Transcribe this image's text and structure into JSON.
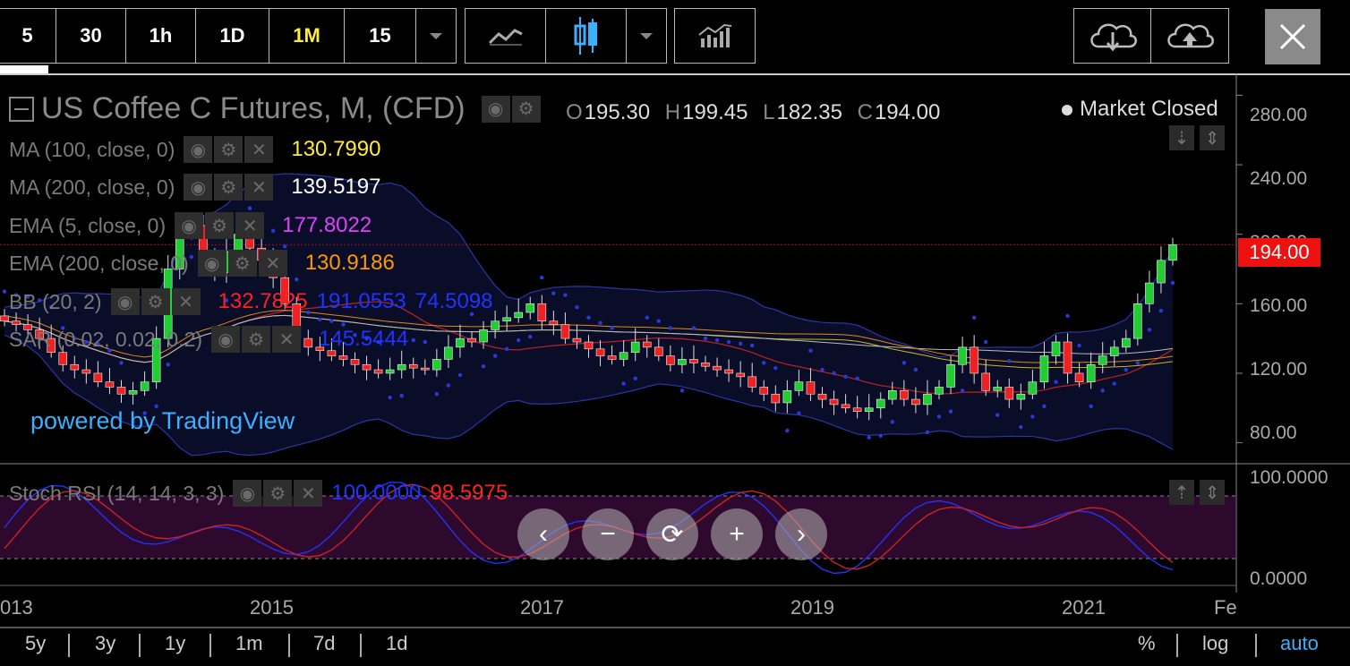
{
  "toolbar": {
    "intervals": [
      "5",
      "30",
      "1h",
      "1D",
      "1M",
      "15"
    ],
    "active_interval": "1M"
  },
  "legend": {
    "title": "US Coffee C Futures, M, (CFD)",
    "ohlc": {
      "o_label": "O",
      "o": "195.30",
      "h_label": "H",
      "h": "199.45",
      "l_label": "L",
      "l": "182.35",
      "c_label": "C",
      "c": "194.00"
    },
    "market_status": "Market Closed",
    "powered_by": "powered by TradingView"
  },
  "indicators": [
    {
      "name": "MA (100, close, 0)",
      "values": [
        "130.7990"
      ],
      "colors": [
        "#ffeb3b"
      ]
    },
    {
      "name": "MA (200, close, 0)",
      "values": [
        "139.5197"
      ],
      "colors": [
        "#ffffff"
      ]
    },
    {
      "name": "EMA (5, close, 0)",
      "values": [
        "177.8022"
      ],
      "colors": [
        "#e040fb"
      ]
    },
    {
      "name": "EMA (200, close, 0)",
      "values": [
        "130.9186"
      ],
      "colors": [
        "#ff9800"
      ]
    },
    {
      "name": "BB (20, 2)",
      "values": [
        "132.7825",
        "191.0553",
        "74.5098"
      ],
      "colors": [
        "#ff2222",
        "#2233ff",
        "#2233ff"
      ]
    },
    {
      "name": "SAR (0.02, 0.02, 0.2)",
      "values": [
        "145.5444"
      ],
      "colors": [
        "#2233ff"
      ]
    }
  ],
  "stoch": {
    "name": "Stoch RSI (14, 14, 3, 3)",
    "k": "100.0000",
    "d": "98.5975",
    "k_color": "#2233ff",
    "d_color": "#ff2222"
  },
  "price_axis": [
    "280.00",
    "240.00",
    "200.00",
    "160.00",
    "120.00",
    "80.00"
  ],
  "last_price": "194.00",
  "stoch_axis": [
    "100.0000",
    "0.0000"
  ],
  "time_axis": [
    "013",
    "2015",
    "2017",
    "2019",
    "2021",
    "Fe"
  ],
  "ranges": [
    "5y",
    "3y",
    "1y",
    "1m",
    "7d",
    "1d"
  ],
  "scale_modes": {
    "percent": "%",
    "log": "log",
    "auto": "auto"
  },
  "colors": {
    "up": "#22cc33",
    "down": "#ee2222",
    "accent": "#3ab0ff"
  },
  "chart_data": {
    "type": "candlestick",
    "title": "US Coffee C Futures, M, (CFD)",
    "x_ticks": [
      "2015",
      "2017",
      "2019",
      "2021"
    ],
    "ylim": [
      70,
      290
    ],
    "y_ticks": [
      80,
      120,
      160,
      200,
      240,
      280
    ],
    "close_series_approx": [
      150,
      148,
      145,
      140,
      132,
      125,
      122,
      120,
      115,
      112,
      108,
      110,
      115,
      140,
      180,
      200,
      205,
      185,
      178,
      190,
      200,
      192,
      185,
      175,
      160,
      140,
      135,
      133,
      130,
      128,
      125,
      122,
      120,
      122,
      125,
      123,
      122,
      128,
      135,
      140,
      138,
      145,
      150,
      152,
      155,
      160,
      150,
      148,
      140,
      138,
      134,
      130,
      128,
      132,
      138,
      135,
      130,
      125,
      128,
      126,
      124,
      122,
      120,
      118,
      112,
      108,
      103,
      110,
      115,
      108,
      105,
      102,
      100,
      98,
      100,
      105,
      110,
      105,
      102,
      108,
      112,
      125,
      135,
      120,
      110,
      112,
      105,
      108,
      115,
      130,
      138,
      120,
      115,
      125,
      130,
      135,
      140,
      160,
      172,
      185,
      194
    ],
    "last": 194.0
  }
}
